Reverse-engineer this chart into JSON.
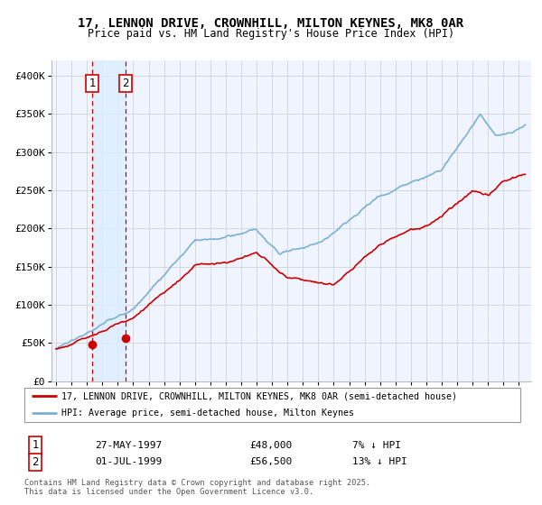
{
  "title": "17, LENNON DRIVE, CROWNHILL, MILTON KEYNES, MK8 0AR",
  "subtitle": "Price paid vs. HM Land Registry's House Price Index (HPI)",
  "legend_line1": "17, LENNON DRIVE, CROWNHILL, MILTON KEYNES, MK8 0AR (semi-detached house)",
  "legend_line2": "HPI: Average price, semi-detached house, Milton Keynes",
  "footer": "Contains HM Land Registry data © Crown copyright and database right 2025.\nThis data is licensed under the Open Government Licence v3.0.",
  "sale1_date": "27-MAY-1997",
  "sale1_price": 48000,
  "sale1_hpi_diff": "7% ↓ HPI",
  "sale2_date": "01-JUL-1999",
  "sale2_price": 56500,
  "sale2_hpi_diff": "13% ↓ HPI",
  "red_color": "#cc0000",
  "blue_color": "#7ab0d4",
  "span_color": "#ddeeff",
  "bg_color": "#f0f4ff",
  "grid_color": "#cccccc",
  "ylim_max": 420000,
  "yticks": [
    0,
    50000,
    100000,
    150000,
    200000,
    250000,
    300000,
    350000,
    400000
  ],
  "ytick_labels": [
    "£0",
    "£50K",
    "£100K",
    "£150K",
    "£200K",
    "£250K",
    "£300K",
    "£350K",
    "£400K"
  ]
}
